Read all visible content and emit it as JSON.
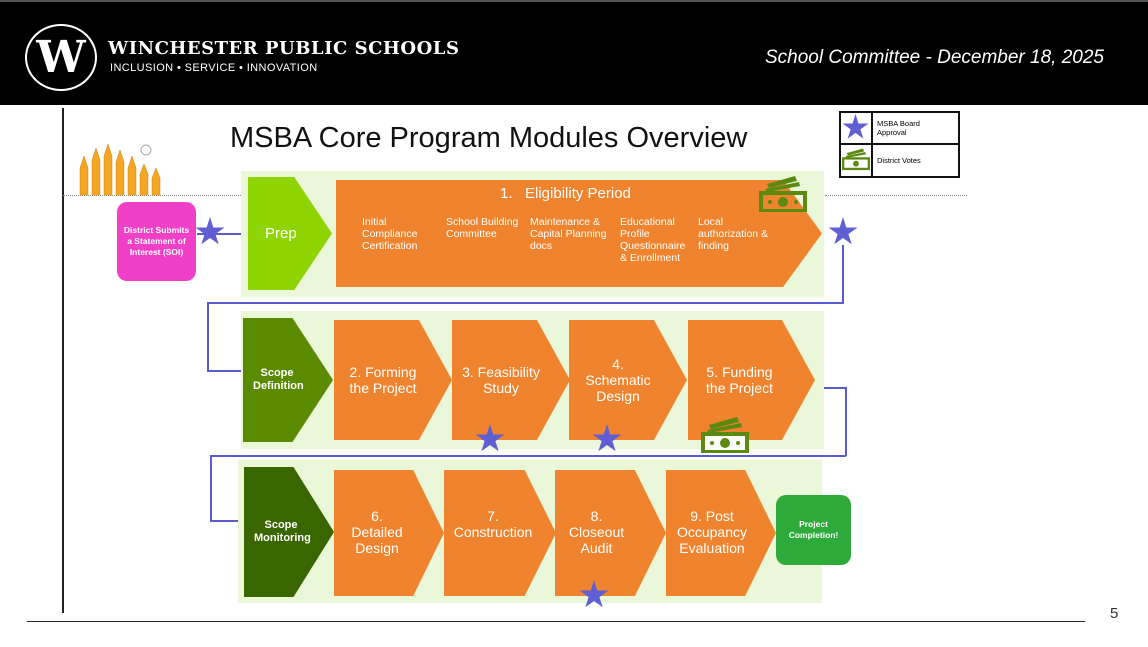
{
  "header": {
    "school_name": "WINCHESTER PUBLIC SCHOOLS",
    "motto": "INCLUSION • SERVICE • INNOVATION",
    "logo_letter": "W",
    "meeting": "School Committee - December 18, 2025"
  },
  "slide": {
    "title": "MSBA Core Program Modules Overview",
    "page_number": "5"
  },
  "legend": {
    "star_label": "MSBA Board Approval",
    "money_label": "District Votes"
  },
  "start": "District Submits a Statement of Interest (SOI)",
  "row1": {
    "prep": "Prep",
    "eligibility": "1.   Eligibility Period",
    "items": [
      "Initial Compliance Certification",
      "School Building Committee",
      "Maintenance & Capital Planning docs",
      "Educational Profile Questionnaire & Enrollment",
      "Local authorization & finding"
    ]
  },
  "row2": {
    "phase": "Scope Definition",
    "steps": [
      "2. Forming the Project",
      "3. Feasibility Study",
      "4. Schematic Design",
      "5. Funding the Project"
    ]
  },
  "row3": {
    "phase": "Scope Monitoring",
    "steps": [
      "6. Detailed Design",
      "7. Construction",
      "8. Closeout Audit",
      "9. Post Occupancy Evaluation"
    ]
  },
  "end": "Project Completion!",
  "colors": {
    "orange": "#f0832d",
    "prep": "#8fd400",
    "scope_definition": "#5a8a00",
    "scope_monitoring": "#3a6600",
    "soi": "#f040c8",
    "completion": "#2eaa3a",
    "star": "#5f5fd3",
    "money": "#5a8a10"
  }
}
